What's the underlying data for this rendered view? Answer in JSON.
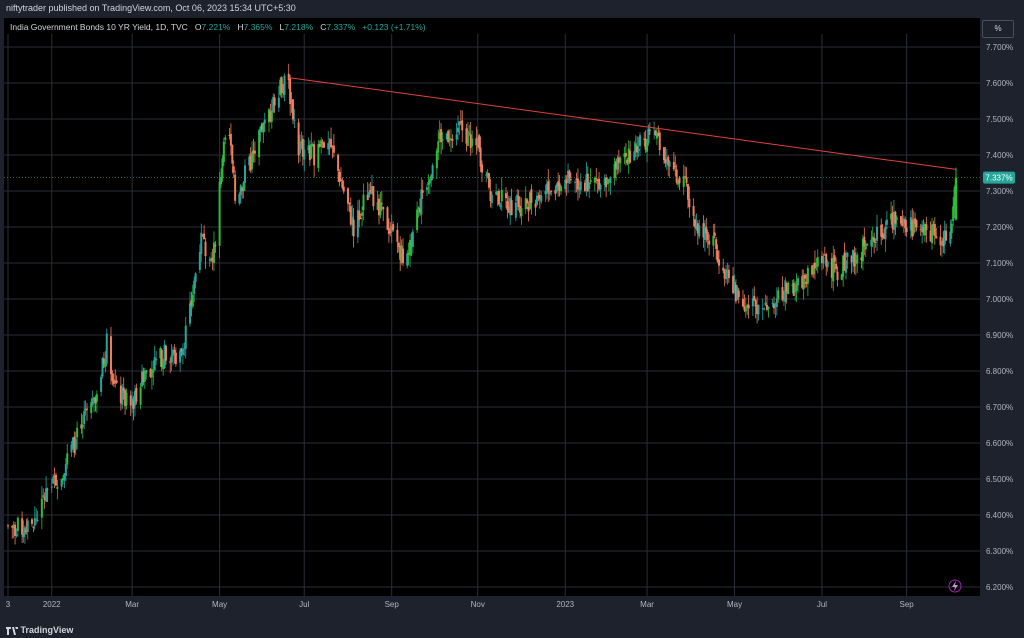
{
  "header": {
    "publisher_line": "niftytrader published on TradingView.com, Oct 06, 2023 15:34 UTC+5:30"
  },
  "legend": {
    "title": "India Government Bonds 10 YR Yield, 1D, TVC",
    "open_label": "O",
    "open": "7.221%",
    "high_label": "H",
    "high": "7.365%",
    "low_label": "L",
    "low": "7.218%",
    "close_label": "C",
    "close": "7.337%",
    "change": "+0.123 (+1.71%)"
  },
  "scale_button": "%",
  "footer": {
    "brand": "TradingView"
  },
  "colors": {
    "up": "#26a69a",
    "up_bright": "#2ebd3b",
    "down": "#ef7f5f",
    "trendline": "#e0433a",
    "grid": "#2a2e39",
    "axis_text": "#b2b5be",
    "last_price_bg": "#26a69a",
    "background": "#000000"
  },
  "icons": {
    "alert": "lightning-icon"
  },
  "chart_data": {
    "type": "candlestick",
    "y_scale": "linear",
    "ylim": [
      6.18,
      7.72
    ],
    "y_ticks": [
      "7.700%",
      "7.600%",
      "7.500%",
      "7.400%",
      "7.300%",
      "7.200%",
      "7.100%",
      "7.000%",
      "6.900%",
      "6.800%",
      "6.700%",
      "6.600%",
      "6.500%",
      "6.400%",
      "6.300%",
      "6.200%"
    ],
    "x_ticks": [
      "3",
      "2022",
      "Mar",
      "May",
      "Jul",
      "Sep",
      "Nov",
      "2023",
      "Mar",
      "May",
      "Jul",
      "Sep"
    ],
    "last_price_label": "7.337%",
    "last_close": 7.337,
    "grid": true,
    "trendline": {
      "from": {
        "date": "2022-06-20",
        "value": 7.615
      },
      "to": {
        "date": "2023-10-06",
        "value": 7.36
      }
    },
    "path_points": [
      [
        "2021-12-03",
        6.37
      ],
      [
        "2021-12-20",
        6.36
      ],
      [
        "2021-12-30",
        6.46
      ],
      [
        "2022-01-10",
        6.52
      ],
      [
        "2022-01-20",
        6.61
      ],
      [
        "2022-01-31",
        6.7
      ],
      [
        "2022-02-07",
        6.79
      ],
      [
        "2022-02-11",
        6.88
      ],
      [
        "2022-02-18",
        6.74
      ],
      [
        "2022-02-28",
        6.7
      ],
      [
        "2022-03-10",
        6.8
      ],
      [
        "2022-03-25",
        6.85
      ],
      [
        "2022-04-04",
        6.84
      ],
      [
        "2022-04-11",
        6.96
      ],
      [
        "2022-04-18",
        7.16
      ],
      [
        "2022-04-28",
        7.13
      ],
      [
        "2022-05-04",
        7.4
      ],
      [
        "2022-05-09",
        7.45
      ],
      [
        "2022-05-13",
        7.28
      ],
      [
        "2022-05-24",
        7.38
      ],
      [
        "2022-06-03",
        7.48
      ],
      [
        "2022-06-14",
        7.6
      ],
      [
        "2022-06-20",
        7.59
      ],
      [
        "2022-06-27",
        7.42
      ],
      [
        "2022-07-08",
        7.4
      ],
      [
        "2022-07-18",
        7.45
      ],
      [
        "2022-07-29",
        7.3
      ],
      [
        "2022-08-05",
        7.2
      ],
      [
        "2022-08-16",
        7.3
      ],
      [
        "2022-08-30",
        7.2
      ],
      [
        "2022-09-12",
        7.1
      ],
      [
        "2022-09-22",
        7.28
      ],
      [
        "2022-10-05",
        7.45
      ],
      [
        "2022-10-19",
        7.48
      ],
      [
        "2022-11-01",
        7.42
      ],
      [
        "2022-11-10",
        7.3
      ],
      [
        "2022-11-24",
        7.26
      ],
      [
        "2022-12-06",
        7.27
      ],
      [
        "2022-12-19",
        7.3
      ],
      [
        "2023-01-04",
        7.33
      ],
      [
        "2023-01-18",
        7.32
      ],
      [
        "2023-01-31",
        7.34
      ],
      [
        "2023-02-10",
        7.37
      ],
      [
        "2023-02-24",
        7.43
      ],
      [
        "2023-03-06",
        7.46
      ],
      [
        "2023-03-15",
        7.37
      ],
      [
        "2023-03-28",
        7.31
      ],
      [
        "2023-04-06",
        7.2
      ],
      [
        "2023-04-18",
        7.15
      ],
      [
        "2023-05-02",
        7.02
      ],
      [
        "2023-05-12",
        6.98
      ],
      [
        "2023-05-24",
        6.99
      ],
      [
        "2023-06-06",
        7.02
      ],
      [
        "2023-06-19",
        7.05
      ],
      [
        "2023-07-03",
        7.1
      ],
      [
        "2023-07-14",
        7.08
      ],
      [
        "2023-07-28",
        7.12
      ],
      [
        "2023-08-10",
        7.18
      ],
      [
        "2023-08-24",
        7.22
      ],
      [
        "2023-09-06",
        7.2
      ],
      [
        "2023-09-18",
        7.18
      ],
      [
        "2023-09-27",
        7.17
      ],
      [
        "2023-10-04",
        7.23
      ],
      [
        "2023-10-06",
        7.337
      ]
    ]
  }
}
